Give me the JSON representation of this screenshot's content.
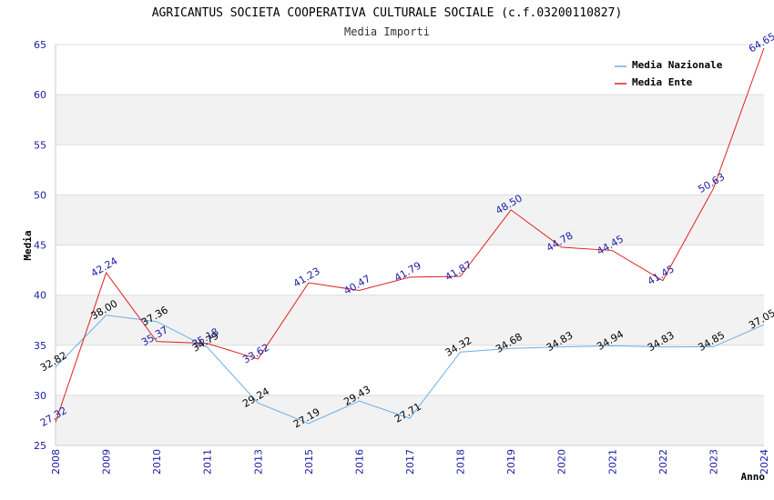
{
  "chart_data": {
    "type": "line",
    "title": "AGRICANTUS SOCIETA COOPERATIVA CULTURALE SOCIALE (c.f.03200110827)",
    "subtitle": "Media Importi",
    "xlabel": "Anno",
    "ylabel": "Media",
    "ylim": [
      25,
      65
    ],
    "yticks": [
      "25",
      "30",
      "35",
      "40",
      "45",
      "50",
      "55",
      "60",
      "65"
    ],
    "categories": [
      "2008",
      "2009",
      "2010",
      "2011",
      "2013",
      "2015",
      "2016",
      "2017",
      "2018",
      "2019",
      "2020",
      "2021",
      "2022",
      "2023",
      "2024"
    ],
    "legend_position": "top-right",
    "series": [
      {
        "name": "Media Nazionale",
        "color": "#6aaee6",
        "values": [
          32.82,
          38.0,
          37.36,
          34.79,
          29.24,
          27.19,
          29.43,
          27.71,
          34.32,
          34.68,
          34.83,
          34.94,
          34.83,
          34.85,
          37.05
        ],
        "labels": [
          "32.82",
          "38.00",
          "37.36",
          "34.79",
          "29.24",
          "27.19",
          "29.43",
          "27.71",
          "34.32",
          "34.68",
          "34.83",
          "34.94",
          "34.83",
          "34.85",
          "37.05"
        ]
      },
      {
        "name": "Media Ente",
        "color": "#e02020",
        "values": [
          27.32,
          42.24,
          35.37,
          35.18,
          33.62,
          41.23,
          40.47,
          41.79,
          41.87,
          48.5,
          44.78,
          44.45,
          41.45,
          50.63,
          64.65
        ],
        "labels": [
          "27.32",
          "42.24",
          "35.37",
          "35.18",
          "33.62",
          "41.23",
          "40.47",
          "41.79",
          "41.87",
          "48.50",
          "44.78",
          "44.45",
          "41.45",
          "50.63",
          "64.65"
        ]
      }
    ],
    "grid": true
  }
}
